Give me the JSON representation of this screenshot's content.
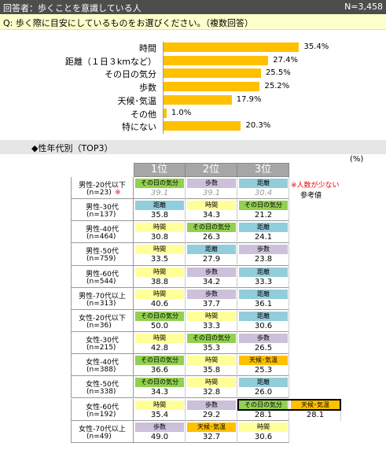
{
  "header": {
    "title": "回答者：歩くことを意識している人",
    "n": "N=3,458"
  },
  "question": "Q:  歩く際に目安にしているものをお選びください。（複数回答）",
  "chart_data": {
    "type": "bar",
    "orientation": "horizontal",
    "color": "#FFC000",
    "categories": [
      "時間",
      "距離（１日３kmなど）",
      "その日の気分",
      "歩数",
      "天候･気温",
      "その他",
      "特にない"
    ],
    "values": [
      35.4,
      27.4,
      25.5,
      25.2,
      17.9,
      1.0,
      20.3
    ],
    "value_labels": [
      "35.4%",
      "27.4%",
      "25.5%",
      "25.2%",
      "17.9%",
      "1.0%",
      "20.3%"
    ]
  },
  "section": {
    "title": "◆性年代別（TOP3）",
    "unit": "(%)"
  },
  "table": {
    "columns": [
      "1位",
      "2位",
      "3位"
    ],
    "note": {
      "mark": "※人数が少ない",
      "text": "参考値"
    },
    "rows": [
      {
        "group": "男性-20代以下",
        "n": "(n=23)",
        "mark": "※",
        "reference": true,
        "cells": [
          {
            "label": "その日の気分",
            "value": "39.1",
            "color": "#92D050"
          },
          {
            "label": "歩数",
            "value": "39.1",
            "color": "#CCC0DA"
          },
          {
            "label": "距離",
            "value": "30.4",
            "color": "#92CDDC"
          }
        ]
      },
      {
        "group": "男性-30代",
        "n": "(n=137)",
        "cells": [
          {
            "label": "距離",
            "value": "35.8",
            "color": "#92CDDC"
          },
          {
            "label": "時間",
            "value": "34.3",
            "color": "#FFFF99"
          },
          {
            "label": "その日の気分",
            "value": "21.2",
            "color": "#92D050"
          }
        ]
      },
      {
        "group": "男性-40代",
        "n": "(n=464)",
        "cells": [
          {
            "label": "時間",
            "value": "30.8",
            "color": "#FFFF99"
          },
          {
            "label": "その日の気分",
            "value": "26.3",
            "color": "#92D050"
          },
          {
            "label": "距離",
            "value": "24.1",
            "color": "#92CDDC"
          }
        ]
      },
      {
        "group": "男性-50代",
        "n": "(n=759)",
        "cells": [
          {
            "label": "時間",
            "value": "33.5",
            "color": "#FFFF99"
          },
          {
            "label": "距離",
            "value": "27.9",
            "color": "#92CDDC"
          },
          {
            "label": "歩数",
            "value": "23.8",
            "color": "#CCC0DA"
          }
        ]
      },
      {
        "group": "男性-60代",
        "n": "(n=544)",
        "cells": [
          {
            "label": "時間",
            "value": "38.8",
            "color": "#FFFF99"
          },
          {
            "label": "歩数",
            "value": "34.2",
            "color": "#CCC0DA"
          },
          {
            "label": "距離",
            "value": "33.3",
            "color": "#92CDDC"
          }
        ]
      },
      {
        "group": "男性-70代以上",
        "n": "(n=313)",
        "cells": [
          {
            "label": "時間",
            "value": "40.6",
            "color": "#FFFF99"
          },
          {
            "label": "歩数",
            "value": "37.7",
            "color": "#CCC0DA"
          },
          {
            "label": "距離",
            "value": "36.1",
            "color": "#92CDDC"
          }
        ]
      },
      {
        "group": "女性-20代以下",
        "n": "(n=36)",
        "cells": [
          {
            "label": "その日の気分",
            "value": "50.0",
            "color": "#92D050"
          },
          {
            "label": "時間",
            "value": "33.3",
            "color": "#FFFF99"
          },
          {
            "label": "距離",
            "value": "30.6",
            "color": "#92CDDC"
          }
        ]
      },
      {
        "group": "女性-30代",
        "n": "(n=215)",
        "cells": [
          {
            "label": "時間",
            "value": "42.8",
            "color": "#FFFF99"
          },
          {
            "label": "その日の気分",
            "value": "35.3",
            "color": "#92D050"
          },
          {
            "label": "歩数",
            "value": "26.5",
            "color": "#CCC0DA"
          }
        ]
      },
      {
        "group": "女性-40代",
        "n": "(n=388)",
        "cells": [
          {
            "label": "その日の気分",
            "value": "36.6",
            "color": "#92D050"
          },
          {
            "label": "時間",
            "value": "35.8",
            "color": "#FFFF99"
          },
          {
            "label": "天候･気温",
            "value": "25.3",
            "color": "#FFC000"
          }
        ]
      },
      {
        "group": "女性-50代",
        "n": "(n=338)",
        "cells": [
          {
            "label": "その日の気分",
            "value": "34.3",
            "color": "#92D050"
          },
          {
            "label": "時間",
            "value": "32.8",
            "color": "#FFFF99"
          },
          {
            "label": "距離",
            "value": "26.0",
            "color": "#92CDDC"
          }
        ]
      },
      {
        "group": "女性-60代",
        "n": "(n=192)",
        "tie_boxed": true,
        "cells": [
          {
            "label": "時間",
            "value": "35.4",
            "color": "#FFFF99"
          },
          {
            "label": "歩数",
            "value": "29.2",
            "color": "#CCC0DA"
          },
          {
            "label": "その日の気分",
            "value": "28.1",
            "color": "#92D050"
          },
          {
            "label": "天候･気温",
            "value": "28.1",
            "color": "#FFC000"
          }
        ]
      },
      {
        "group": "女性-70代以上",
        "n": "(n=49)",
        "cells": [
          {
            "label": "歩数",
            "value": "49.0",
            "color": "#CCC0DA"
          },
          {
            "label": "天候･気温",
            "value": "32.7",
            "color": "#FFC000"
          },
          {
            "label": "時間",
            "value": "30.6",
            "color": "#FFFF99"
          }
        ]
      }
    ]
  }
}
